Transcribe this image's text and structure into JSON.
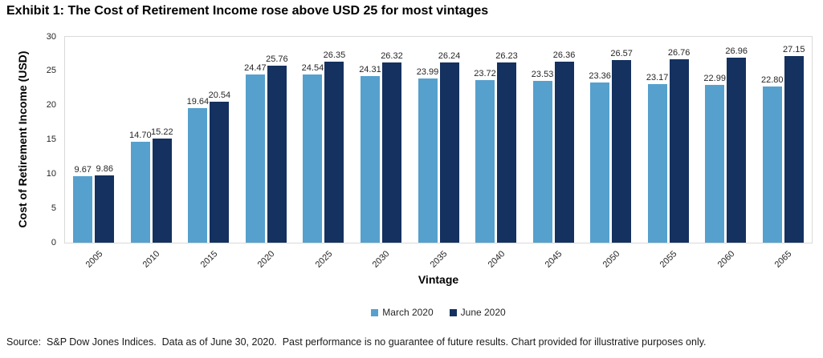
{
  "title": "Exhibit 1: The Cost of Retirement Income rose above USD 25 for most vintages",
  "footer": "Source:  S&P Dow Jones Indices.  Data as of June 30, 2020.  Past performance is no guarantee of future results. Chart provided for illustrative purposes only.",
  "chart_data": {
    "type": "bar",
    "title": "Exhibit 1: The Cost of Retirement Income rose above USD 25 for most vintages",
    "xlabel": "Vintage",
    "ylabel": "Cost of Retirement Income (USD)",
    "ylim": [
      0,
      30
    ],
    "yticks": [
      0,
      5,
      10,
      15,
      20,
      25,
      30
    ],
    "grid": false,
    "legend_position": "bottom",
    "data_labels": true,
    "categories": [
      "2005",
      "2010",
      "2015",
      "2020",
      "2025",
      "2030",
      "2035",
      "2040",
      "2045",
      "2050",
      "2055",
      "2060",
      "2065"
    ],
    "series": [
      {
        "name": "March 2020",
        "color": "#56A0CD",
        "values": [
          9.67,
          14.7,
          19.64,
          24.47,
          24.54,
          24.31,
          23.99,
          23.72,
          23.53,
          23.36,
          23.17,
          22.99,
          22.8
        ]
      },
      {
        "name": "June 2020",
        "color": "#14315F",
        "values": [
          9.86,
          15.22,
          20.54,
          25.76,
          26.35,
          26.32,
          26.24,
          26.23,
          26.36,
          26.57,
          26.76,
          26.96,
          27.15
        ]
      }
    ]
  }
}
